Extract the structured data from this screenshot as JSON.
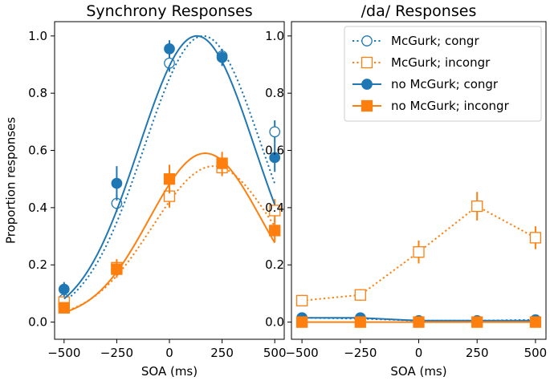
{
  "chart_data": [
    {
      "type": "line",
      "title": "Synchrony Responses",
      "xlabel": "SOA (ms)",
      "ylabel": "Proportion responses",
      "xlim": [
        -545,
        545
      ],
      "ylim": [
        -0.06,
        1.05
      ],
      "xticks": [
        -500,
        -250,
        0,
        250,
        500
      ],
      "xtick_labels": [
        "−500",
        "−250",
        "0",
        "250",
        "500"
      ],
      "yticks": [
        0.0,
        0.2,
        0.4,
        0.6,
        0.8,
        1.0
      ],
      "ytick_labels": [
        "0.0",
        "0.2",
        "0.4",
        "0.6",
        "0.8",
        "1.0"
      ],
      "x": [
        -500,
        -250,
        0,
        250,
        500
      ],
      "series": [
        {
          "name": "McGurk; congr",
          "color": "#1f77b4",
          "marker": "circle",
          "filled": false,
          "line": "dotted",
          "values": [
            0.08,
            0.415,
            0.905,
            0.93,
            0.665
          ],
          "errors": [
            0.02,
            0.03,
            0.03,
            0.02,
            0.04
          ],
          "fit": {
            "peak": 1.0,
            "mu": 160,
            "sigma": 280,
            "base": 0.01
          }
        },
        {
          "name": "McGurk; incongr",
          "color": "#ff7f0e",
          "marker": "square",
          "filled": false,
          "line": "dotted",
          "values": [
            0.07,
            0.19,
            0.44,
            0.54,
            0.39
          ],
          "errors": [
            0.02,
            0.03,
            0.04,
            0.03,
            0.04
          ],
          "fit": {
            "peak": 0.545,
            "mu": 210,
            "sigma": 290,
            "base": 0.01
          }
        },
        {
          "name": "no McGurk; congr",
          "color": "#1f77b4",
          "marker": "circle",
          "filled": true,
          "line": "solid",
          "values": [
            0.115,
            0.485,
            0.955,
            0.925,
            0.575
          ],
          "errors": [
            0.025,
            0.06,
            0.03,
            0.03,
            0.05
          ],
          "fit": {
            "peak": 1.0,
            "mu": 130,
            "sigma": 275,
            "base": 0.01
          }
        },
        {
          "name": "no McGurk; incongr",
          "color": "#ff7f0e",
          "marker": "square",
          "filled": true,
          "line": "solid",
          "values": [
            0.05,
            0.185,
            0.5,
            0.555,
            0.32
          ],
          "errors": [
            0.02,
            0.03,
            0.05,
            0.04,
            0.04
          ],
          "fit": {
            "peak": 0.59,
            "mu": 170,
            "sigma": 265,
            "base": 0.01
          }
        }
      ]
    },
    {
      "type": "line",
      "title": "/da/ Responses",
      "xlabel": "SOA (ms)",
      "ylabel": "",
      "xlim": [
        -545,
        545
      ],
      "ylim": [
        -0.06,
        1.05
      ],
      "xticks": [
        -500,
        -250,
        0,
        250,
        500
      ],
      "xtick_labels": [
        "−500",
        "−250",
        "0",
        "250",
        "500"
      ],
      "yticks": [
        0.0,
        0.2,
        0.4,
        0.6,
        0.8,
        1.0
      ],
      "ytick_labels": [
        "0.0",
        "0.2",
        "0.4",
        "0.6",
        "0.8",
        "1.0"
      ],
      "x": [
        -500,
        -250,
        0,
        250,
        500
      ],
      "legend": {
        "placement": "top-right"
      },
      "series": [
        {
          "name": "McGurk; congr",
          "color": "#1f77b4",
          "marker": "circle",
          "filled": false,
          "line": "dotted",
          "values": [
            0.015,
            0.012,
            0.005,
            0.005,
            0.008
          ],
          "errors": [
            0.01,
            0.01,
            0.008,
            0.008,
            0.008
          ]
        },
        {
          "name": "McGurk; incongr",
          "color": "#ff7f0e",
          "marker": "square",
          "filled": false,
          "line": "dotted",
          "values": [
            0.075,
            0.095,
            0.245,
            0.405,
            0.295
          ],
          "errors": [
            0.02,
            0.02,
            0.04,
            0.05,
            0.04
          ]
        },
        {
          "name": "no McGurk; congr",
          "color": "#1f77b4",
          "marker": "circle",
          "filled": true,
          "line": "solid",
          "values": [
            0.015,
            0.015,
            0.005,
            0.005,
            0.005
          ],
          "errors": [
            0.01,
            0.01,
            0.008,
            0.008,
            0.008
          ]
        },
        {
          "name": "no McGurk; incongr",
          "color": "#ff7f0e",
          "marker": "square",
          "filled": true,
          "line": "solid",
          "values": [
            0.0,
            0.0,
            0.0,
            0.0,
            0.0
          ],
          "errors": [
            0.005,
            0.005,
            0.005,
            0.005,
            0.005
          ]
        }
      ]
    }
  ]
}
